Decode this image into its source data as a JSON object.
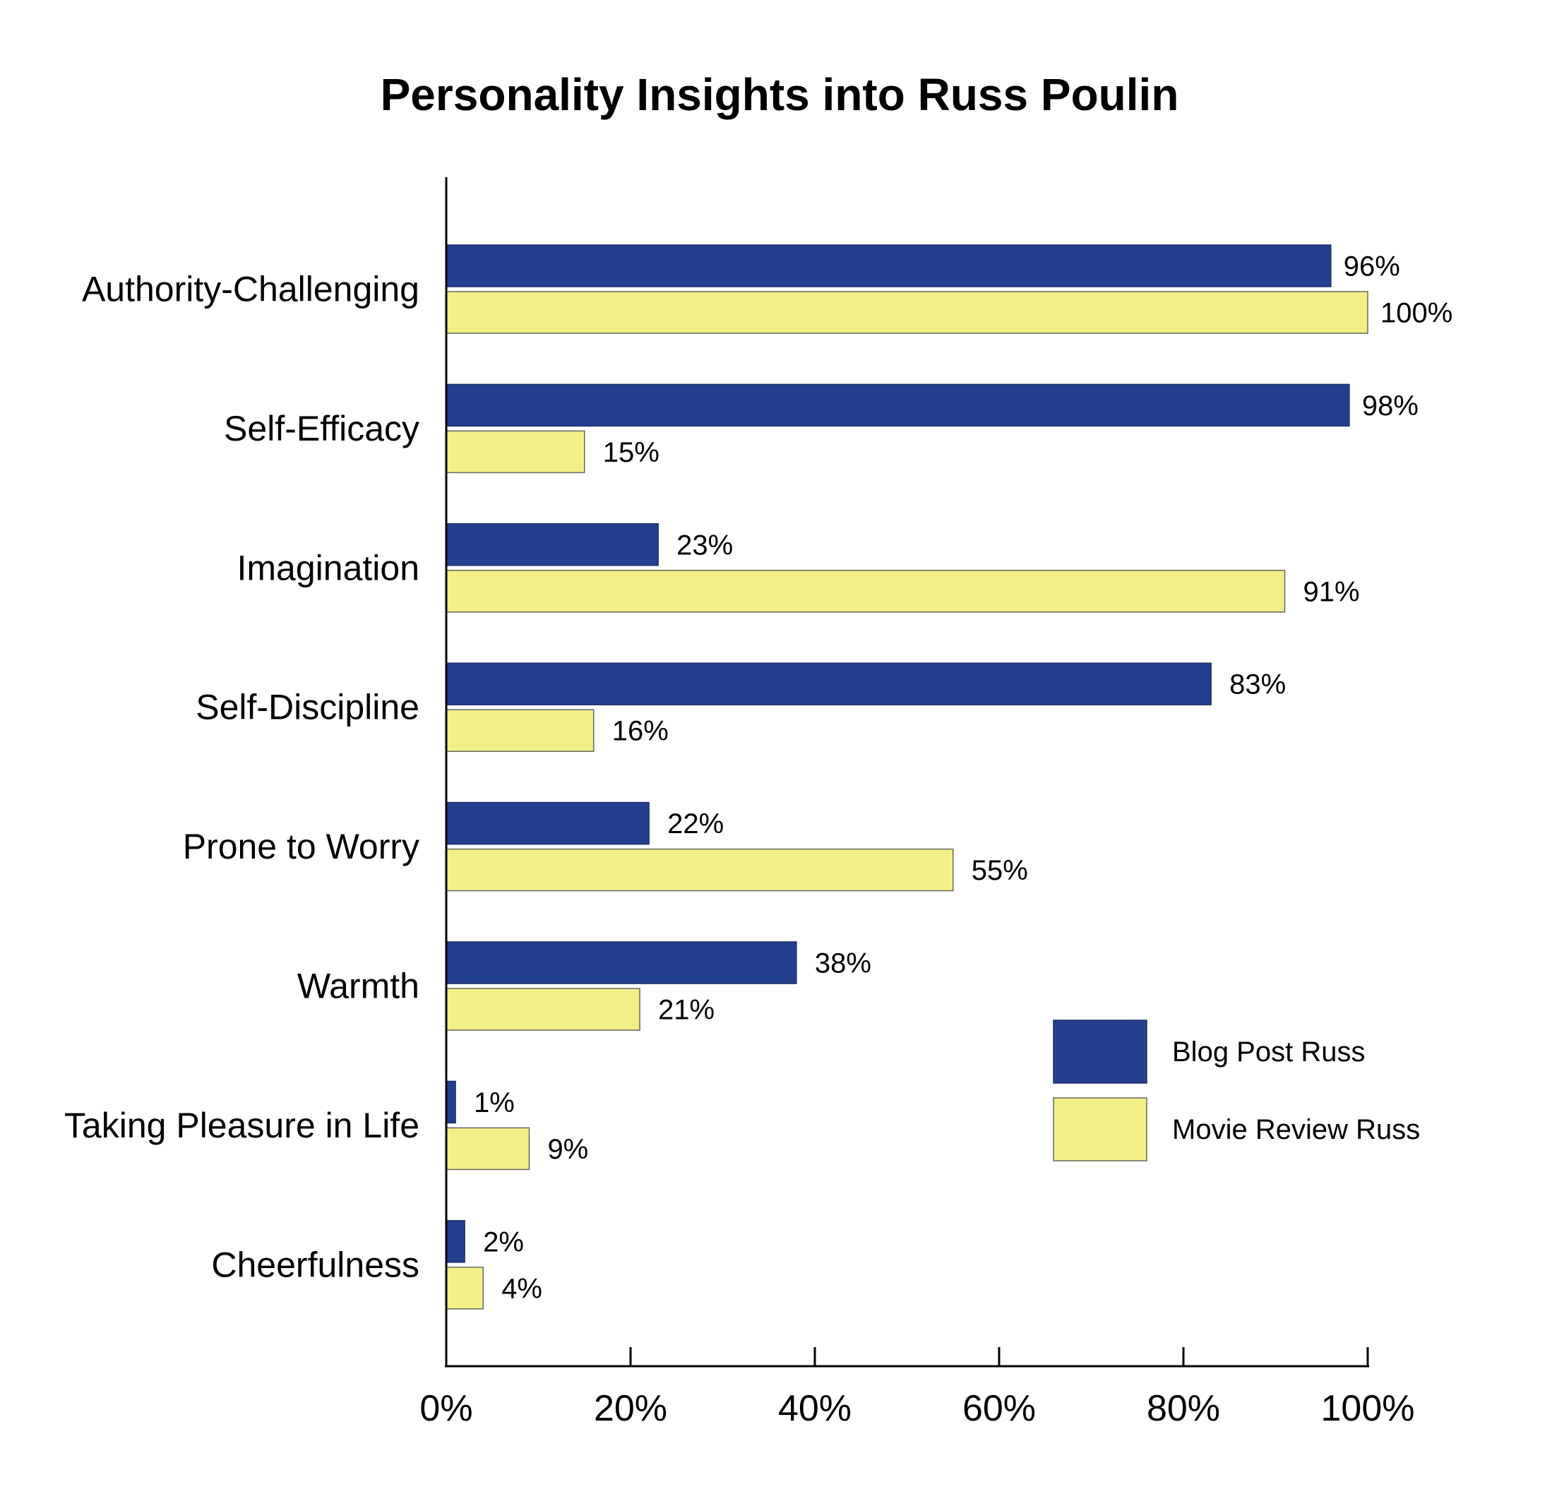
{
  "chart_data": {
    "type": "bar",
    "orientation": "horizontal",
    "title": "Personality Insights into Russ Poulin",
    "xlabel": "",
    "ylabel": "",
    "xlim": [
      0,
      100
    ],
    "x_ticks": [
      "0%",
      "20%",
      "40%",
      "60%",
      "80%",
      "100%"
    ],
    "categories": [
      "Authority-Challenging",
      "Self-Efficacy",
      "Imagination",
      "Self-Discipline",
      "Prone to Worry",
      "Warmth",
      "Taking Pleasure in Life",
      "Cheerfulness"
    ],
    "series": [
      {
        "name": "Blog Post Russ",
        "color": "#233F90",
        "values": [
          96,
          98,
          23,
          83,
          22,
          38,
          1,
          2
        ]
      },
      {
        "name": "Movie Review Russ",
        "color": "#F2EF86",
        "values": [
          100,
          15,
          91,
          16,
          55,
          21,
          9,
          4
        ]
      }
    ],
    "data_label_format": "{v}%",
    "grid": false,
    "legend_position": "bottom-right"
  }
}
